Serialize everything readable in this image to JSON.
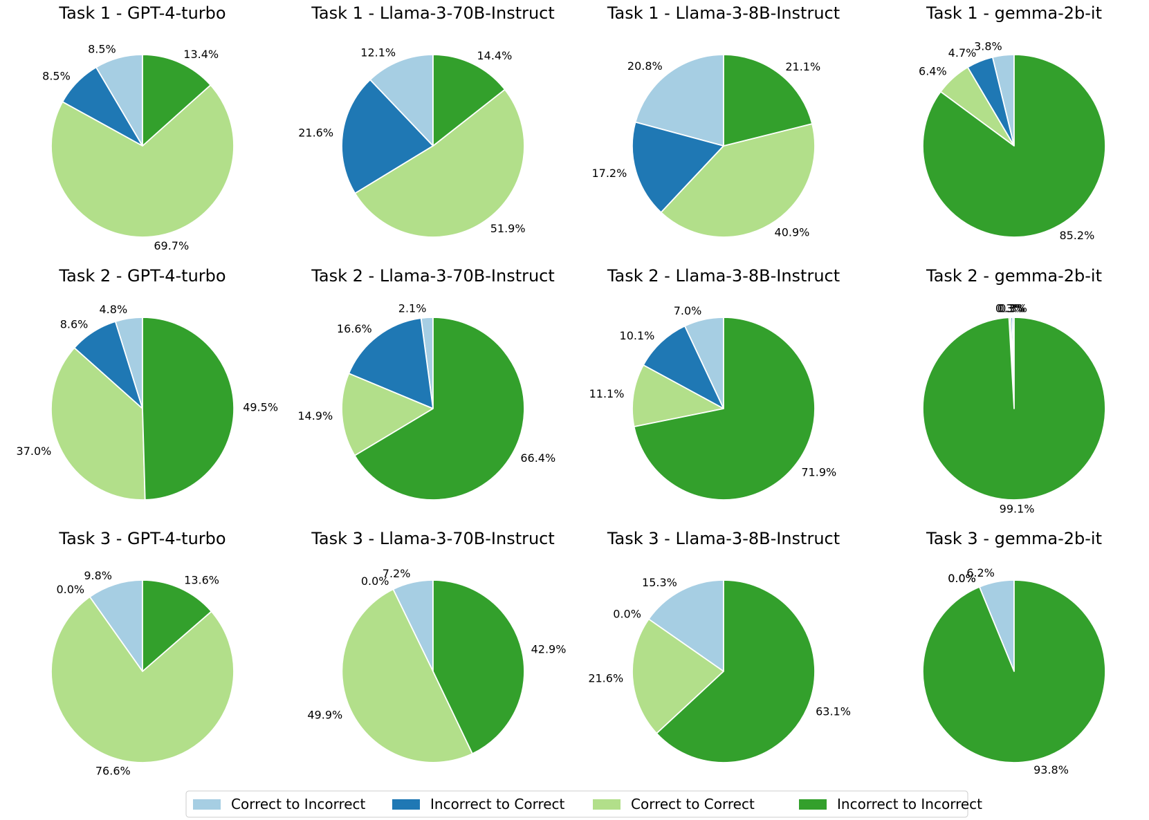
{
  "chart_data": {
    "type": "pie",
    "categories": [
      "Correct to Incorrect",
      "Incorrect to Correct",
      "Correct to Correct",
      "Incorrect to Incorrect"
    ],
    "colors": [
      "#a6cee3",
      "#1f78b4",
      "#b2df8a",
      "#33a02c"
    ],
    "legend": {
      "placement": "bottom-center",
      "entries": [
        "Correct to Incorrect",
        "Incorrect to Correct",
        "Correct to Correct",
        "Incorrect to Incorrect"
      ]
    },
    "charts": [
      {
        "title": "Task 1 - GPT-4-turbo",
        "values": [
          8.5,
          8.5,
          69.7,
          13.4
        ],
        "labels": [
          "8.5%",
          "8.5%",
          "69.7%",
          "13.4%"
        ]
      },
      {
        "title": "Task 1 - Llama-3-70B-Instruct",
        "values": [
          12.1,
          21.6,
          51.9,
          14.4
        ],
        "labels": [
          "12.1%",
          "21.6%",
          "51.9%",
          "14.4%"
        ]
      },
      {
        "title": "Task 1 - Llama-3-8B-Instruct",
        "values": [
          20.8,
          17.2,
          40.9,
          21.1
        ],
        "labels": [
          "20.8%",
          "17.2%",
          "40.9%",
          "21.1%"
        ]
      },
      {
        "title": "Task 1 - gemma-2b-it",
        "values": [
          3.8,
          4.7,
          6.4,
          85.2
        ],
        "labels": [
          "3.8%",
          "4.7%",
          "6.4%",
          "85.2%"
        ]
      },
      {
        "title": "Task 2 - GPT-4-turbo",
        "values": [
          4.8,
          8.6,
          37.0,
          49.5
        ],
        "labels": [
          "4.8%",
          "8.6%",
          "37.0%",
          "49.5%"
        ]
      },
      {
        "title": "Task 2 - Llama-3-70B-Instruct",
        "values": [
          2.1,
          16.6,
          14.9,
          66.4
        ],
        "labels": [
          "2.1%",
          "16.6%",
          "14.9%",
          "66.4%"
        ]
      },
      {
        "title": "Task 2 - Llama-3-8B-Instruct",
        "values": [
          7.0,
          10.1,
          11.1,
          71.9
        ],
        "labels": [
          "7.0%",
          "10.1%",
          "11.1%",
          "71.9%"
        ]
      },
      {
        "title": "Task 2 - gemma-2b-it",
        "values": [
          0.3,
          0.3,
          0.3,
          99.1
        ],
        "labels": [
          "0.3%",
          "0.3%",
          "0.3%",
          "99.1%"
        ]
      },
      {
        "title": "Task 3 - GPT-4-turbo",
        "values": [
          9.8,
          0.0,
          76.6,
          13.6
        ],
        "labels": [
          "9.8%",
          "0.0%",
          "76.6%",
          "13.6%"
        ]
      },
      {
        "title": "Task 3 - Llama-3-70B-Instruct",
        "values": [
          7.2,
          0.0,
          49.9,
          42.9
        ],
        "labels": [
          "7.2%",
          "0.0%",
          "49.9%",
          "42.9%"
        ]
      },
      {
        "title": "Task 3 - Llama-3-8B-Instruct",
        "values": [
          15.3,
          0.0,
          21.6,
          63.1
        ],
        "labels": [
          "15.3%",
          "0.0%",
          "21.6%",
          "63.1%"
        ]
      },
      {
        "title": "Task 3 - gemma-2b-it",
        "values": [
          6.2,
          0.0,
          0.0,
          93.8
        ],
        "labels": [
          "6.2%",
          "0.0%",
          "0.0%",
          "93.8%"
        ]
      }
    ]
  }
}
